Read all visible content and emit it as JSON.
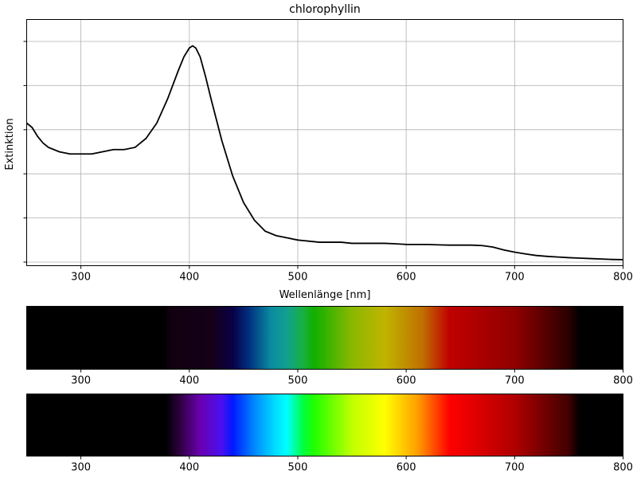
{
  "chart_data": [
    {
      "type": "line",
      "title": "chlorophyllin",
      "xlabel": "Wellenlänge [nm]",
      "ylabel": "Extinktion",
      "xlim": [
        250,
        800
      ],
      "ylim": [
        0,
        1.0
      ],
      "xticks": [
        300,
        400,
        500,
        600,
        700,
        800
      ],
      "yticks": [
        0,
        0.2,
        0.4,
        0.6,
        0.8,
        1.0
      ],
      "ytick_labels_visible": false,
      "grid": true,
      "line_color": "#000000",
      "series": [
        {
          "x": [
            250,
            255,
            260,
            265,
            270,
            280,
            290,
            300,
            310,
            320,
            330,
            340,
            350,
            360,
            370,
            380,
            390,
            395,
            400,
            403,
            406,
            410,
            415,
            420,
            430,
            440,
            450,
            460,
            470,
            480,
            490,
            500,
            510,
            520,
            530,
            540,
            550,
            560,
            570,
            580,
            590,
            600,
            610,
            620,
            630,
            640,
            650,
            660,
            670,
            680,
            690,
            700,
            710,
            720,
            730,
            740,
            750,
            760,
            770,
            780,
            790,
            800
          ],
          "y": [
            0.63,
            0.61,
            0.57,
            0.54,
            0.52,
            0.5,
            0.49,
            0.49,
            0.49,
            0.5,
            0.51,
            0.51,
            0.52,
            0.56,
            0.63,
            0.74,
            0.87,
            0.93,
            0.97,
            0.98,
            0.97,
            0.93,
            0.84,
            0.74,
            0.55,
            0.39,
            0.27,
            0.19,
            0.14,
            0.12,
            0.11,
            0.1,
            0.095,
            0.09,
            0.09,
            0.09,
            0.085,
            0.085,
            0.085,
            0.085,
            0.083,
            0.08,
            0.08,
            0.08,
            0.078,
            0.077,
            0.077,
            0.077,
            0.075,
            0.068,
            0.055,
            0.045,
            0.037,
            0.03,
            0.026,
            0.023,
            0.02,
            0.018,
            0.016,
            0.014,
            0.012,
            0.011
          ]
        }
      ]
    },
    {
      "type": "heatmap",
      "description_role": "spectrum-absorbed",
      "xlim": [
        250,
        800
      ],
      "xticks": [
        300,
        400,
        500,
        600,
        700,
        800
      ],
      "stops": [
        {
          "nm": 250,
          "color": "#000000"
        },
        {
          "nm": 378,
          "color": "#000000"
        },
        {
          "nm": 382,
          "color": "#120010"
        },
        {
          "nm": 420,
          "color": "#150018"
        },
        {
          "nm": 440,
          "color": "#0a0045"
        },
        {
          "nm": 455,
          "color": "#003080"
        },
        {
          "nm": 475,
          "color": "#0b8aa0"
        },
        {
          "nm": 490,
          "color": "#10a090"
        },
        {
          "nm": 505,
          "color": "#18b040"
        },
        {
          "nm": 515,
          "color": "#10b000"
        },
        {
          "nm": 550,
          "color": "#8ab800"
        },
        {
          "nm": 580,
          "color": "#c0b400"
        },
        {
          "nm": 615,
          "color": "#c07000"
        },
        {
          "nm": 640,
          "color": "#c00000"
        },
        {
          "nm": 700,
          "color": "#900000"
        },
        {
          "nm": 750,
          "color": "#2a0000"
        },
        {
          "nm": 760,
          "color": "#000000"
        },
        {
          "nm": 800,
          "color": "#000000"
        }
      ]
    },
    {
      "type": "heatmap",
      "description_role": "spectrum-full",
      "xlim": [
        250,
        800
      ],
      "xticks": [
        300,
        400,
        500,
        600,
        700,
        800
      ],
      "stops": [
        {
          "nm": 250,
          "color": "#000000"
        },
        {
          "nm": 378,
          "color": "#000000"
        },
        {
          "nm": 390,
          "color": "#2a0038"
        },
        {
          "nm": 410,
          "color": "#6a00b0"
        },
        {
          "nm": 430,
          "color": "#4a10f0"
        },
        {
          "nm": 440,
          "color": "#0018ff"
        },
        {
          "nm": 460,
          "color": "#0088ff"
        },
        {
          "nm": 480,
          "color": "#00e0ff"
        },
        {
          "nm": 490,
          "color": "#00ffff"
        },
        {
          "nm": 505,
          "color": "#00ff40"
        },
        {
          "nm": 515,
          "color": "#20ff00"
        },
        {
          "nm": 550,
          "color": "#c0ff00"
        },
        {
          "nm": 580,
          "color": "#ffff00"
        },
        {
          "nm": 610,
          "color": "#ffa000"
        },
        {
          "nm": 640,
          "color": "#ff0000"
        },
        {
          "nm": 700,
          "color": "#b00000"
        },
        {
          "nm": 750,
          "color": "#400000"
        },
        {
          "nm": 760,
          "color": "#000000"
        },
        {
          "nm": 800,
          "color": "#000000"
        }
      ]
    }
  ]
}
